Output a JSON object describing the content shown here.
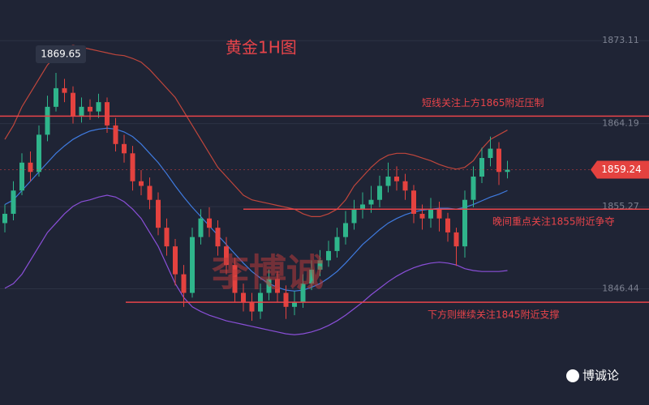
{
  "chart_data": {
    "type": "candlestick",
    "title": "黄金1H图",
    "watermark": "李博诚",
    "logo": "博诚论",
    "up_color": "#2fb58b",
    "down_color": "#e4423f",
    "level_color": "#e8444a",
    "ylim": [
      1833.95,
      1877.48
    ],
    "yticks": [
      1846.44,
      1855.27,
      1864.19,
      1873.11
    ],
    "grid": true,
    "max_marker": 1869.65,
    "last_price": 1859.24,
    "levels": [
      {
        "value": 1865,
        "label": "短线关注上方1865附近压制"
      },
      {
        "value": 1855,
        "label": "晚间重点关注1855附近争夺"
      },
      {
        "value": 1845,
        "label": "下方则继续关注1845附近支撑"
      }
    ],
    "open": [
      1853.5,
      1854.5,
      1857,
      1860,
      1859,
      1863,
      1866,
      1868,
      1867.5,
      1865,
      1866,
      1865.5,
      1866.5,
      1864,
      1862,
      1861,
      1858,
      1857.5,
      1856,
      1853,
      1851,
      1848,
      1846,
      1852,
      1854,
      1853,
      1851,
      1849,
      1846,
      1845,
      1844,
      1846,
      1847.5,
      1846,
      1844.5,
      1845,
      1847,
      1848.5,
      1849.5,
      1850.5,
      1852,
      1853.5,
      1855,
      1855.5,
      1856,
      1857.5,
      1858.5,
      1858,
      1857,
      1854.5,
      1854,
      1855,
      1854,
      1852.5,
      1851,
      1856,
      1858.5,
      1860.5,
      1861.5,
      1859
    ],
    "high": [
      1855.5,
      1858,
      1861,
      1861.2,
      1864,
      1867.2,
      1869.65,
      1869,
      1868.2,
      1867,
      1866.8,
      1867.4,
      1867,
      1864.8,
      1863,
      1861.8,
      1859.2,
      1858.4,
      1856.8,
      1854,
      1851.8,
      1849,
      1853,
      1855,
      1855.2,
      1853.8,
      1852,
      1849.8,
      1847,
      1846,
      1847,
      1848.5,
      1848.3,
      1846.8,
      1846.2,
      1848,
      1849.5,
      1850.6,
      1851.6,
      1853,
      1854.8,
      1856,
      1856.8,
      1857.5,
      1858.6,
      1860,
      1859.6,
      1858.8,
      1857.6,
      1855.5,
      1856.2,
      1855.8,
      1854.6,
      1853,
      1857,
      1859.6,
      1861.6,
      1862.8,
      1862.2,
      1860.2
    ],
    "low": [
      1852.5,
      1853.8,
      1856.5,
      1858,
      1858.5,
      1862.3,
      1865.5,
      1866.5,
      1864.2,
      1864.3,
      1864.6,
      1864.8,
      1863.2,
      1861.2,
      1860,
      1857,
      1856.5,
      1855,
      1852.2,
      1850,
      1846.8,
      1844.5,
      1845.5,
      1851.2,
      1852,
      1850,
      1848,
      1845,
      1844,
      1843,
      1843.2,
      1845.2,
      1845,
      1843.2,
      1843.6,
      1844.4,
      1846.3,
      1847.8,
      1848.8,
      1849.8,
      1851.2,
      1852.8,
      1854,
      1854.6,
      1855.2,
      1856.8,
      1857,
      1856,
      1853.5,
      1852.8,
      1853,
      1852.6,
      1851.5,
      1848.9,
      1849.8,
      1855.2,
      1857.8,
      1859.6,
      1857.6,
      1858.3
    ],
    "close": [
      1854.5,
      1857,
      1860,
      1859,
      1863,
      1866,
      1868,
      1867.5,
      1865,
      1866,
      1865.5,
      1866.5,
      1864,
      1862,
      1861,
      1858,
      1857.5,
      1856,
      1853,
      1851,
      1848,
      1846,
      1852,
      1854,
      1853,
      1851,
      1849,
      1846,
      1845,
      1844,
      1846,
      1847.5,
      1846,
      1844.5,
      1845,
      1847,
      1848.5,
      1849.5,
      1850.5,
      1852,
      1853.5,
      1855,
      1855.5,
      1856,
      1857.5,
      1858.5,
      1858,
      1857,
      1854.5,
      1854,
      1855,
      1854,
      1852.5,
      1851,
      1856,
      1858.5,
      1860.5,
      1861.5,
      1859,
      1859.24
    ],
    "bands": [
      {
        "color": "#c0463c",
        "values": [
          1862.5,
          1864,
          1866,
          1867.5,
          1869,
          1870.5,
          1871.5,
          1872.3,
          1872.6,
          1872.4,
          1872.2,
          1872,
          1871.8,
          1871.6,
          1871.5,
          1871.2,
          1870.8,
          1870,
          1869,
          1868,
          1867,
          1865.5,
          1864,
          1862.5,
          1861,
          1859.5,
          1858.5,
          1857.5,
          1856.5,
          1856,
          1855.8,
          1855.6,
          1855.4,
          1855.2,
          1855,
          1854.5,
          1854.2,
          1854.2,
          1854.5,
          1855,
          1856,
          1857.5,
          1858.5,
          1859.5,
          1860.3,
          1860.8,
          1861,
          1861,
          1860.8,
          1860.5,
          1860.2,
          1859.8,
          1859.5,
          1859.3,
          1859.5,
          1860.2,
          1861.5,
          1862.5,
          1863,
          1863.5
        ]
      },
      {
        "color": "#3f7be0",
        "values": [
          1855.5,
          1856,
          1857,
          1858,
          1859,
          1860,
          1861,
          1861.8,
          1862.5,
          1863,
          1863.4,
          1863.6,
          1863.7,
          1863.6,
          1863.3,
          1862.8,
          1862,
          1861,
          1860,
          1858.8,
          1857.5,
          1856.3,
          1855.2,
          1854.2,
          1853.2,
          1852.2,
          1851.2,
          1850.2,
          1849.2,
          1848.3,
          1847.6,
          1847,
          1846.6,
          1846.3,
          1846.2,
          1846.3,
          1846.6,
          1847,
          1847.6,
          1848.3,
          1849.2,
          1850.2,
          1851.2,
          1852,
          1852.8,
          1853.5,
          1854,
          1854.4,
          1854.7,
          1854.9,
          1855,
          1855.1,
          1855.1,
          1855,
          1855.2,
          1855.5,
          1855.9,
          1856.3,
          1856.6,
          1857
        ]
      },
      {
        "color": "#8a4fd8",
        "values": [
          1846.5,
          1847,
          1848,
          1849.5,
          1851,
          1852.5,
          1853.5,
          1854.5,
          1855.3,
          1855.8,
          1856,
          1856.3,
          1856.5,
          1856.3,
          1855.8,
          1855,
          1854,
          1852.5,
          1851,
          1849,
          1847,
          1845.5,
          1844.5,
          1844,
          1843.6,
          1843.3,
          1843,
          1842.8,
          1842.6,
          1842.4,
          1842.2,
          1842,
          1841.8,
          1841.6,
          1841.5,
          1841.6,
          1841.8,
          1842.1,
          1842.5,
          1843,
          1843.6,
          1844.3,
          1845,
          1845.8,
          1846.5,
          1847.2,
          1847.8,
          1848.3,
          1848.7,
          1849,
          1849.2,
          1849.3,
          1849.2,
          1849,
          1848.6,
          1848.4,
          1848.3,
          1848.3,
          1848.3,
          1848.4
        ]
      }
    ]
  }
}
